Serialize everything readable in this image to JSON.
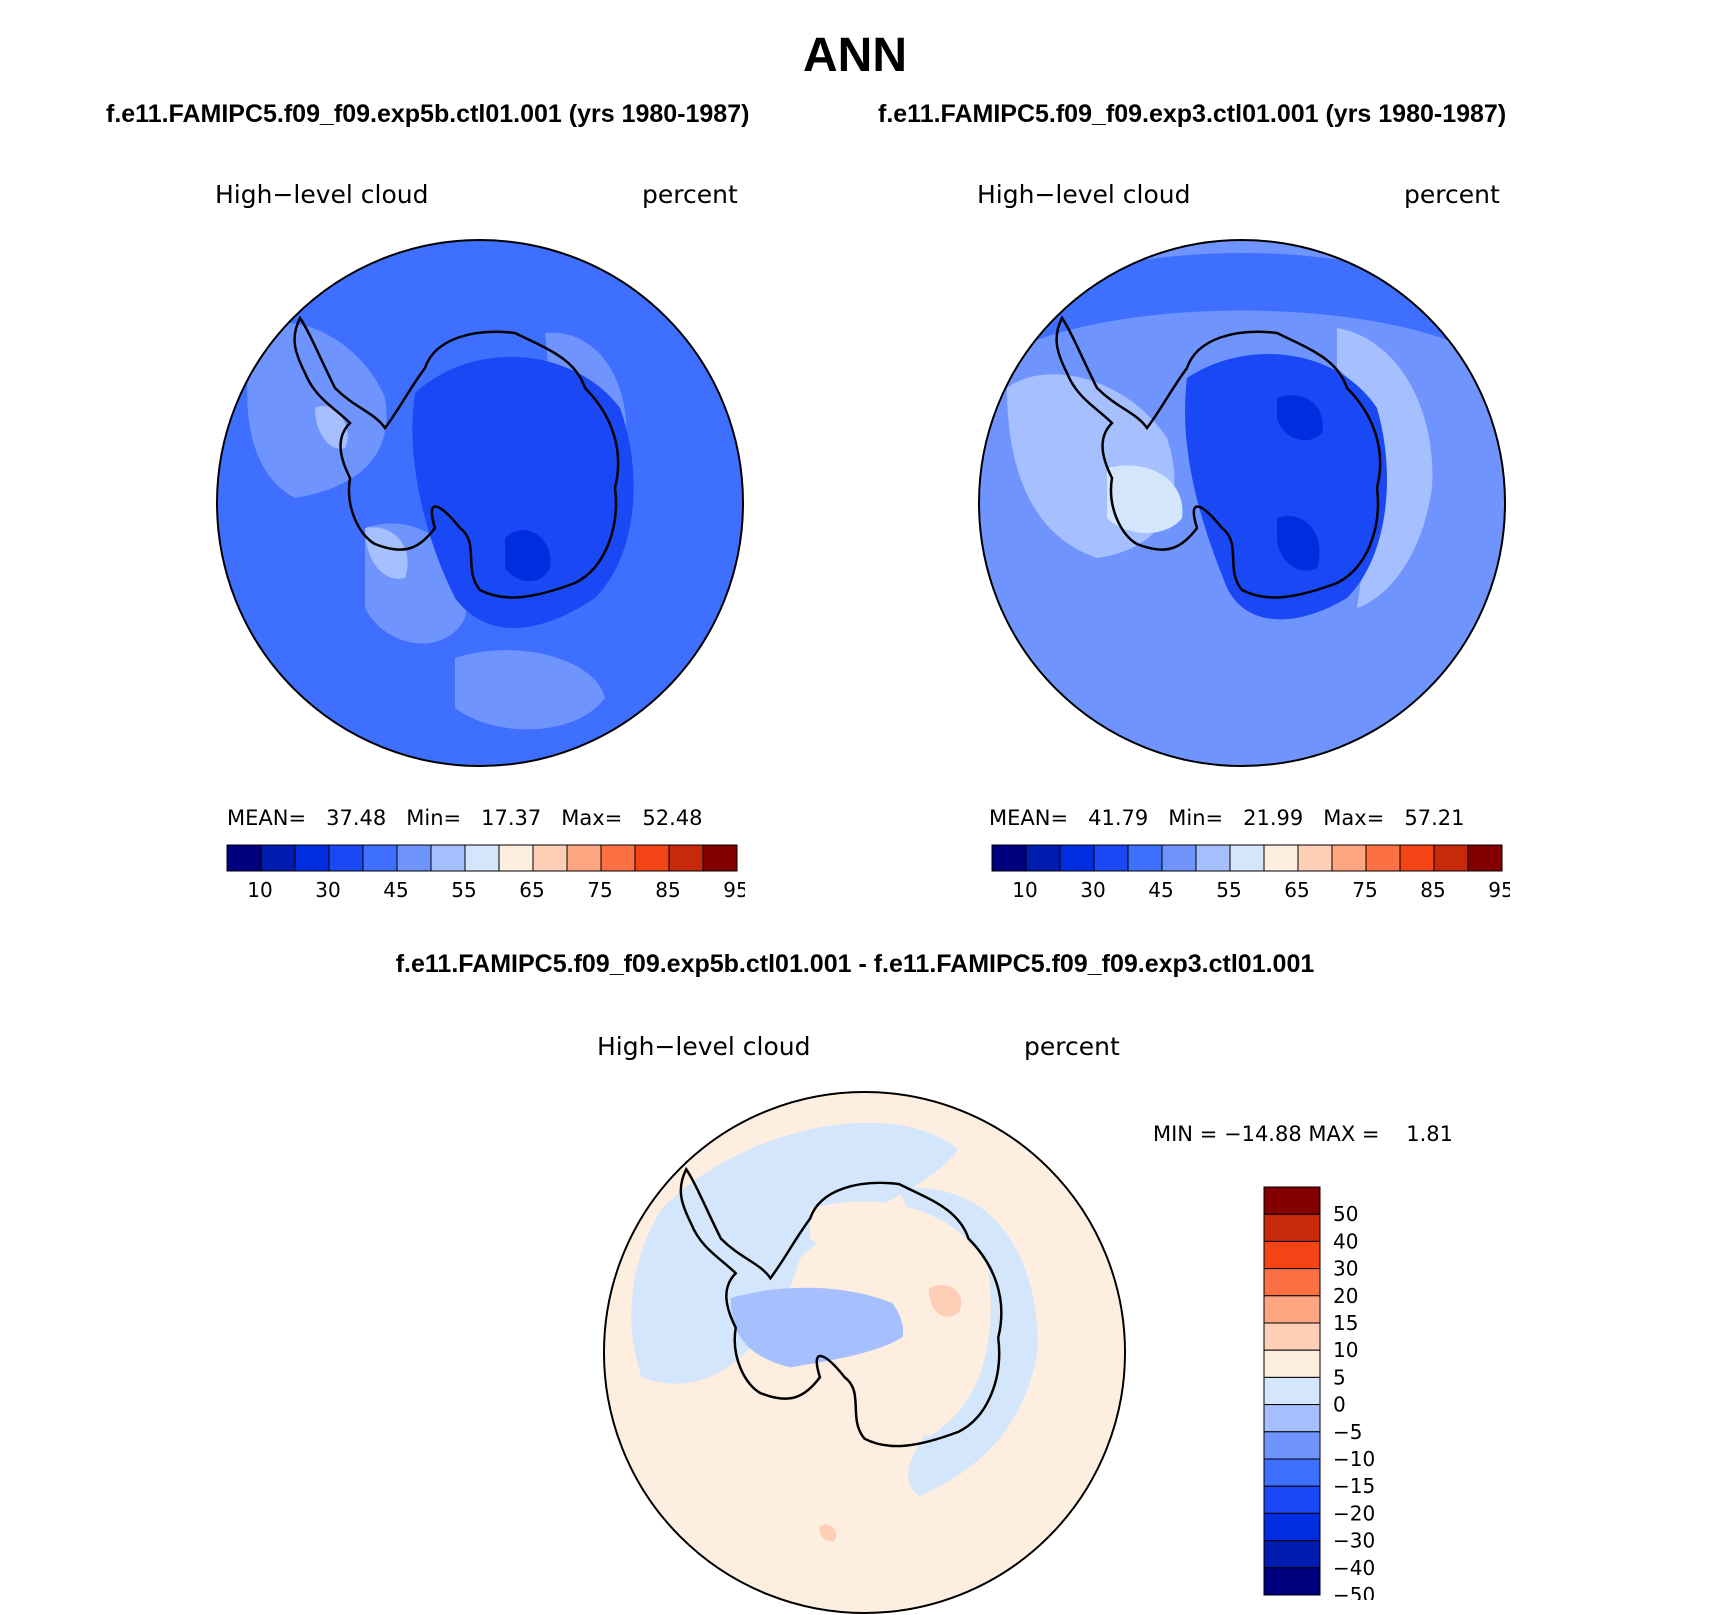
{
  "title": "ANN",
  "colors": {
    "main_levels": [
      "#00007f",
      "#001bb0",
      "#002de0",
      "#1a48f5",
      "#3f6ffe",
      "#6f94fe",
      "#a6bffe",
      "#d4e6fb",
      "#fdeedf",
      "#fecfb6",
      "#fea681",
      "#fd7043",
      "#f44314",
      "#c8290a",
      "#840000"
    ],
    "diff_levels": [
      "#00007f",
      "#001bb0",
      "#002de0",
      "#1a48f5",
      "#3f6ffe",
      "#6f94fe",
      "#a6bffe",
      "#d4e6fb",
      "#fdeedf",
      "#fecfb6",
      "#fea681",
      "#fd7043",
      "#f44314",
      "#c8290a",
      "#840000"
    ]
  },
  "panels": [
    {
      "case": "f.e11.FAMIPC5.f09_f09.exp5b.ctl01.001 (yrs 1980-1987)",
      "variable": "High−level cloud",
      "units": "percent",
      "mean_label": "MEAN=",
      "mean": "37.48",
      "min_label": "Min=",
      "min": "17.37",
      "max_label": "Max=",
      "max": "52.48",
      "colorbar_ticks": [
        "10",
        "30",
        "45",
        "55",
        "65",
        "75",
        "85",
        "95"
      ]
    },
    {
      "case": "f.e11.FAMIPC5.f09_f09.exp3.ctl01.001 (yrs 1980-1987)",
      "variable": "High−level cloud",
      "units": "percent",
      "mean_label": "MEAN=",
      "mean": "41.79",
      "min_label": "Min=",
      "min": "21.99",
      "max_label": "Max=",
      "max": "57.21",
      "colorbar_ticks": [
        "10",
        "30",
        "45",
        "55",
        "65",
        "75",
        "85",
        "95"
      ]
    }
  ],
  "difference": {
    "title": "f.e11.FAMIPC5.f09_f09.exp5b.ctl01.001 - f.e11.FAMIPC5.f09_f09.exp3.ctl01.001",
    "variable": "High−level cloud",
    "units": "percent",
    "min_label": "MIN =",
    "min": "−14.88",
    "max_label": "MAX =",
    "max": "1.81",
    "colorbar_ticks": [
      "50",
      "40",
      "30",
      "20",
      "15",
      "10",
      "5",
      "0",
      "−5",
      "−10",
      "−15",
      "−20",
      "−30",
      "−40",
      "−50"
    ]
  }
}
